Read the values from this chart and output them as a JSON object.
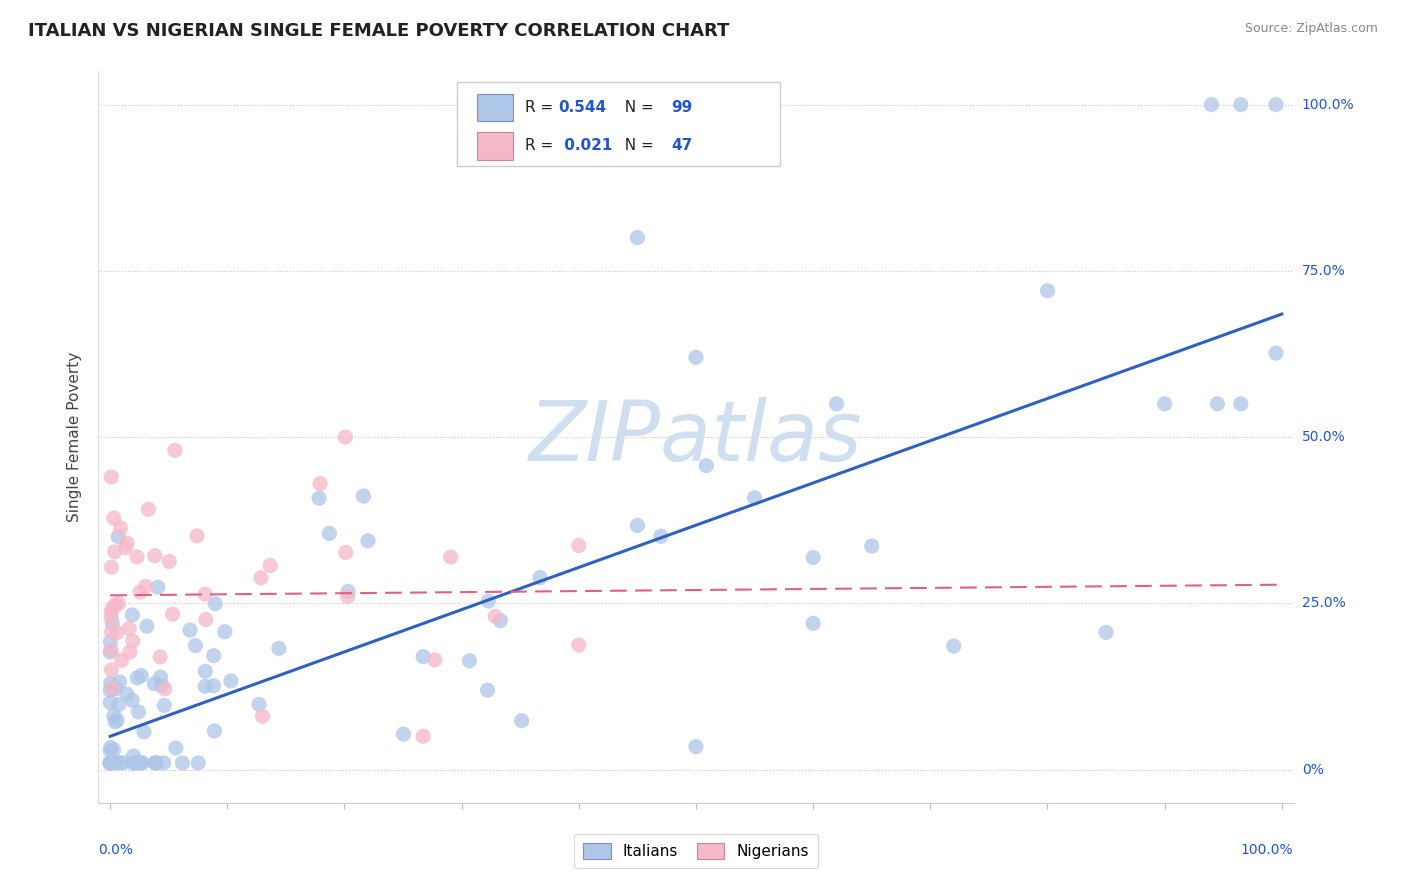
{
  "title": "ITALIAN VS NIGERIAN SINGLE FEMALE POVERTY CORRELATION CHART",
  "source": "Source: ZipAtlas.com",
  "ylabel": "Single Female Poverty",
  "italian_color": "#aec6e8",
  "nigerian_color": "#f5b8c8",
  "trendline_italian_color": "#3060c0",
  "trendline_nigerian_color": "#e06080",
  "watermark_color": "#d0dff0",
  "background_color": "#ffffff",
  "legend_text_color": "#2255cc",
  "right_label_color": "#2255cc",
  "title_color": "#222222",
  "source_color": "#888888",
  "grid_color": "#cccccc",
  "ytick_vals": [
    0.0,
    0.25,
    0.5,
    0.75,
    1.0
  ],
  "ytick_labels": [
    "0%",
    "25.0%",
    "50.0%",
    "75.0%",
    "100.0%"
  ],
  "italian_trend_x0": 0.0,
  "italian_trend_y0": 0.05,
  "italian_trend_x1": 1.0,
  "italian_trend_y1": 0.685,
  "nigerian_trend_x0": 0.0,
  "nigerian_trend_y0": 0.262,
  "nigerian_trend_x1": 1.0,
  "nigerian_trend_y1": 0.278,
  "ylim_min": -0.05,
  "ylim_max": 1.05,
  "xlim_min": -0.01,
  "xlim_max": 1.01
}
